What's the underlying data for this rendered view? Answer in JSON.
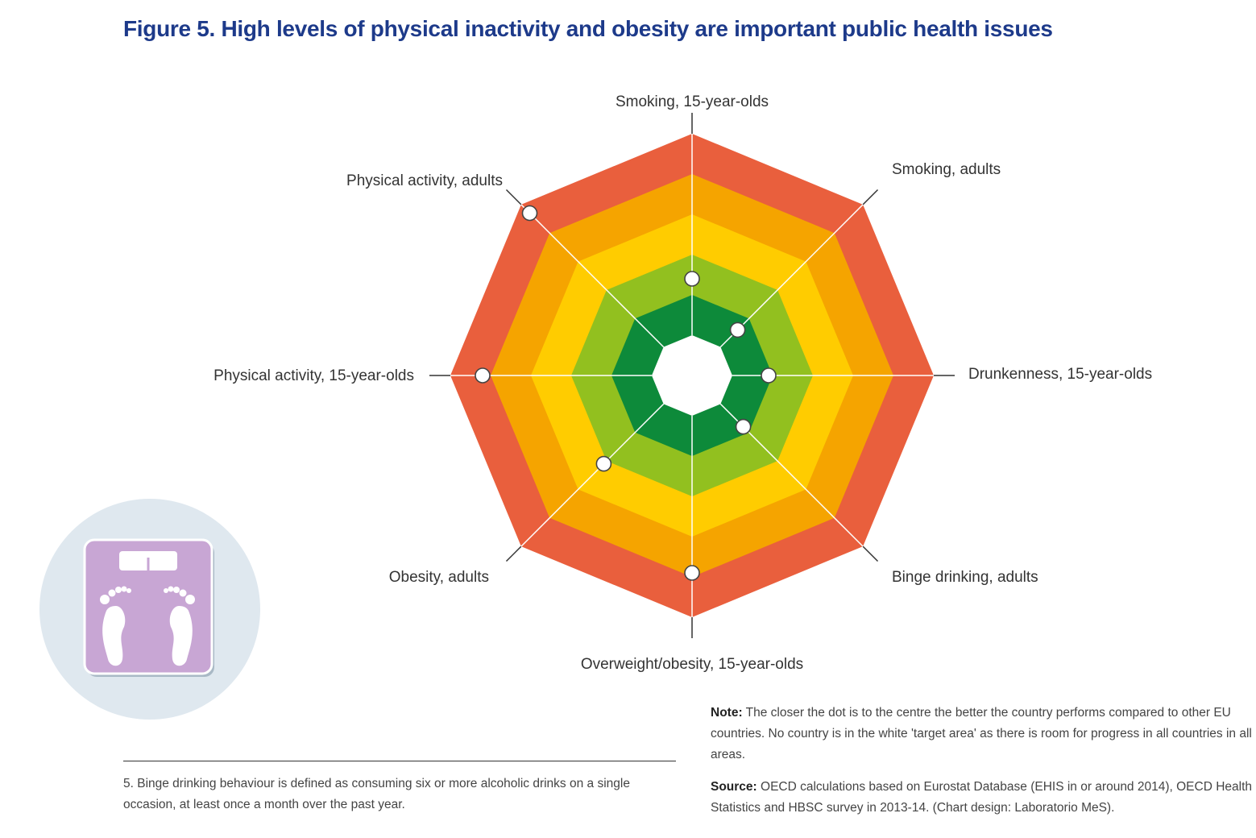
{
  "title": "Figure 5. High levels of physical inactivity and obesity are important public health issues",
  "chart_data": {
    "type": "radar",
    "axes": [
      "Smoking, 15-year-olds",
      "Smoking, adults",
      "Drunkenness, 15-year-olds",
      "Binge drinking, adults",
      "Overweight/obesity, 15-year-olds",
      "Obesity, adults",
      "Physical activity, 15-year-olds",
      "Physical activity, adults"
    ],
    "bands": [
      {
        "level": 0,
        "color": "#ffffff"
      },
      {
        "level": 1,
        "color": "#0d8a3a"
      },
      {
        "level": 2,
        "color": "#92c01f"
      },
      {
        "level": 3,
        "color": "#ffcc00"
      },
      {
        "level": 4,
        "color": "#f5a400"
      },
      {
        "level": 5,
        "color": "#e95f3d"
      }
    ],
    "scale_max": 6,
    "values": [
      2.4,
      1.6,
      1.9,
      1.8,
      4.9,
      3.1,
      5.2,
      5.7
    ]
  },
  "note": {
    "label": "Note:",
    "text": "The closer the dot is to the centre the better the country performs compared to other EU countries. No country is in the white 'target area' as there is room for progress in all countries in all areas."
  },
  "source": {
    "label": "Source:",
    "text": "OECD calculations based on Eurostat Database (EHIS in or around 2014), OECD Health Statistics and HBSC survey in 2013-14. (Chart design: Laboratorio MeS)."
  },
  "footnote": "5. Binge drinking behaviour is defined as consuming six or more alcoholic drinks on a single occasion, at least once a month over the past year.",
  "icon": {
    "name": "bathroom-scale-icon",
    "circle_color": "#dfe8ef",
    "tile_color": "#c8a6d4"
  }
}
